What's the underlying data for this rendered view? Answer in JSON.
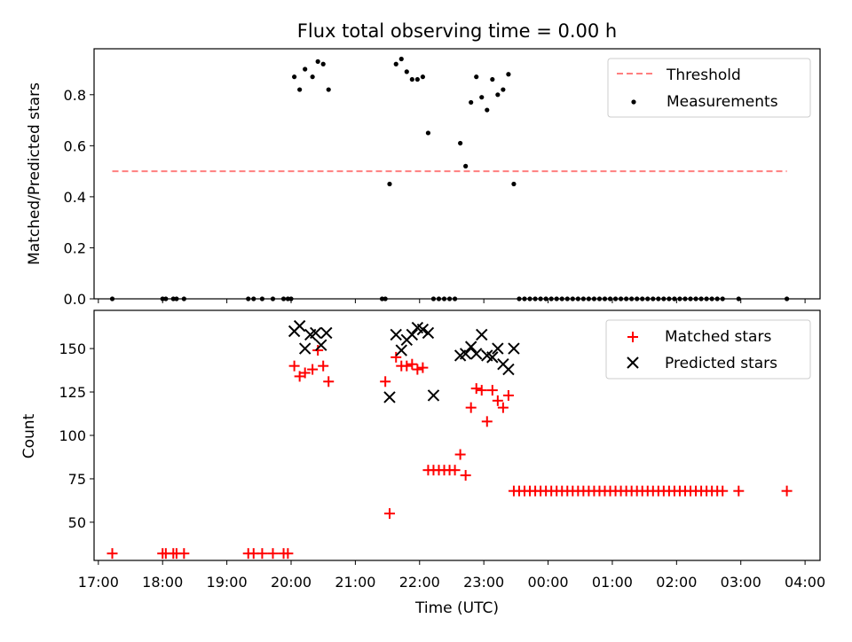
{
  "chart_data": [
    {
      "type": "scatter",
      "title": "Flux total observing time = 0.00 h",
      "ylabel": "Matched/Predicted stars",
      "xlim": [
        "16:56",
        "04:14"
      ],
      "ylim": [
        0,
        0.98
      ],
      "yticks": [
        "0.0",
        "0.2",
        "0.4",
        "0.6",
        "0.8"
      ],
      "legend_position": "top-right",
      "threshold": {
        "name": "Threshold",
        "value": 0.5,
        "x_start": "17:13",
        "x_end": "03:43",
        "color": "#ff7f7f"
      },
      "series": [
        {
          "name": "Measurements",
          "color": "#000000",
          "points": [
            [
              "17:13",
              0
            ],
            [
              "18:00",
              0
            ],
            [
              "18:03",
              0
            ],
            [
              "18:10",
              0
            ],
            [
              "18:13",
              0
            ],
            [
              "18:20",
              0
            ],
            [
              "19:20",
              0
            ],
            [
              "19:25",
              0
            ],
            [
              "19:33",
              0
            ],
            [
              "19:43",
              0
            ],
            [
              "19:53",
              0
            ],
            [
              "19:57",
              0
            ],
            [
              "20:00",
              0
            ],
            [
              "20:03",
              0.87
            ],
            [
              "20:08",
              0.82
            ],
            [
              "20:13",
              0.9
            ],
            [
              "20:20",
              0.87
            ],
            [
              "20:25",
              0.93
            ],
            [
              "20:30",
              0.92
            ],
            [
              "20:35",
              0.82
            ],
            [
              "21:25",
              0
            ],
            [
              "21:28",
              0
            ],
            [
              "21:32",
              0.45
            ],
            [
              "21:38",
              0.92
            ],
            [
              "21:43",
              0.94
            ],
            [
              "21:48",
              0.89
            ],
            [
              "21:53",
              0.86
            ],
            [
              "21:58",
              0.86
            ],
            [
              "22:03",
              0.87
            ],
            [
              "22:08",
              0.65
            ],
            [
              "22:13",
              0
            ],
            [
              "22:18",
              0
            ],
            [
              "22:23",
              0
            ],
            [
              "22:28",
              0
            ],
            [
              "22:33",
              0
            ],
            [
              "22:38",
              0.61
            ],
            [
              "22:43",
              0.52
            ],
            [
              "22:48",
              0.77
            ],
            [
              "22:53",
              0.87
            ],
            [
              "22:58",
              0.79
            ],
            [
              "23:03",
              0.74
            ],
            [
              "23:08",
              0.86
            ],
            [
              "23:13",
              0.8
            ],
            [
              "23:18",
              0.82
            ],
            [
              "23:23",
              0.88
            ],
            [
              "23:28",
              0.45
            ],
            [
              "23:33",
              0
            ],
            [
              "23:38",
              0
            ],
            [
              "23:43",
              0
            ],
            [
              "23:48",
              0
            ],
            [
              "23:53",
              0
            ],
            [
              "23:58",
              0
            ],
            [
              "00:03",
              0
            ],
            [
              "00:08",
              0
            ],
            [
              "00:13",
              0
            ],
            [
              "00:18",
              0
            ],
            [
              "00:23",
              0
            ],
            [
              "00:28",
              0
            ],
            [
              "00:33",
              0
            ],
            [
              "00:38",
              0
            ],
            [
              "00:43",
              0
            ],
            [
              "00:48",
              0
            ],
            [
              "00:53",
              0
            ],
            [
              "00:58",
              0
            ],
            [
              "01:03",
              0
            ],
            [
              "01:08",
              0
            ],
            [
              "01:13",
              0
            ],
            [
              "01:18",
              0
            ],
            [
              "01:23",
              0
            ],
            [
              "01:28",
              0
            ],
            [
              "01:33",
              0
            ],
            [
              "01:38",
              0
            ],
            [
              "01:43",
              0
            ],
            [
              "01:48",
              0
            ],
            [
              "01:53",
              0
            ],
            [
              "01:58",
              0
            ],
            [
              "02:03",
              0
            ],
            [
              "02:08",
              0
            ],
            [
              "02:13",
              0
            ],
            [
              "02:18",
              0
            ],
            [
              "02:23",
              0
            ],
            [
              "02:28",
              0
            ],
            [
              "02:33",
              0
            ],
            [
              "02:38",
              0
            ],
            [
              "02:43",
              0
            ],
            [
              "02:58",
              0
            ],
            [
              "03:43",
              0
            ]
          ]
        }
      ]
    },
    {
      "type": "scatter",
      "xlabel": "Time (UTC)",
      "ylabel": "Count",
      "xlim": [
        "16:56",
        "04:14"
      ],
      "ylim": [
        28,
        172
      ],
      "yticks": [
        "50",
        "75",
        "100",
        "125",
        "150"
      ],
      "xticks": [
        "17:00",
        "18:00",
        "19:00",
        "20:00",
        "21:00",
        "22:00",
        "23:00",
        "00:00",
        "01:00",
        "02:00",
        "03:00",
        "04:00"
      ],
      "legend_position": "top-right",
      "series": [
        {
          "name": "Matched stars",
          "marker": "plus",
          "color": "#ff0000",
          "points": [
            [
              "17:13",
              32
            ],
            [
              "18:00",
              32
            ],
            [
              "18:03",
              32
            ],
            [
              "18:10",
              32
            ],
            [
              "18:13",
              32
            ],
            [
              "18:20",
              32
            ],
            [
              "19:20",
              32
            ],
            [
              "19:25",
              32
            ],
            [
              "19:33",
              32
            ],
            [
              "19:43",
              32
            ],
            [
              "19:53",
              32
            ],
            [
              "19:57",
              32
            ],
            [
              "20:03",
              140
            ],
            [
              "20:08",
              134
            ],
            [
              "20:13",
              136
            ],
            [
              "20:20",
              138
            ],
            [
              "20:25",
              149
            ],
            [
              "20:30",
              140
            ],
            [
              "20:35",
              131
            ],
            [
              "21:28",
              131
            ],
            [
              "21:32",
              55
            ],
            [
              "21:38",
              145
            ],
            [
              "21:43",
              140
            ],
            [
              "21:48",
              140
            ],
            [
              "21:53",
              141
            ],
            [
              "21:58",
              138
            ],
            [
              "22:03",
              139
            ],
            [
              "22:08",
              80
            ],
            [
              "22:13",
              80
            ],
            [
              "22:18",
              80
            ],
            [
              "22:23",
              80
            ],
            [
              "22:28",
              80
            ],
            [
              "22:33",
              80
            ],
            [
              "22:38",
              89
            ],
            [
              "22:43",
              77
            ],
            [
              "22:48",
              116
            ],
            [
              "22:53",
              127
            ],
            [
              "22:58",
              126
            ],
            [
              "23:03",
              108
            ],
            [
              "23:08",
              126
            ],
            [
              "23:13",
              120
            ],
            [
              "23:18",
              116
            ],
            [
              "23:23",
              123
            ],
            [
              "23:28",
              68
            ],
            [
              "23:33",
              68
            ],
            [
              "23:38",
              68
            ],
            [
              "23:43",
              68
            ],
            [
              "23:48",
              68
            ],
            [
              "23:53",
              68
            ],
            [
              "23:58",
              68
            ],
            [
              "00:03",
              68
            ],
            [
              "00:08",
              68
            ],
            [
              "00:13",
              68
            ],
            [
              "00:18",
              68
            ],
            [
              "00:23",
              68
            ],
            [
              "00:28",
              68
            ],
            [
              "00:33",
              68
            ],
            [
              "00:38",
              68
            ],
            [
              "00:43",
              68
            ],
            [
              "00:48",
              68
            ],
            [
              "00:53",
              68
            ],
            [
              "00:58",
              68
            ],
            [
              "01:03",
              68
            ],
            [
              "01:08",
              68
            ],
            [
              "01:13",
              68
            ],
            [
              "01:18",
              68
            ],
            [
              "01:23",
              68
            ],
            [
              "01:28",
              68
            ],
            [
              "01:33",
              68
            ],
            [
              "01:38",
              68
            ],
            [
              "01:43",
              68
            ],
            [
              "01:48",
              68
            ],
            [
              "01:53",
              68
            ],
            [
              "01:58",
              68
            ],
            [
              "02:03",
              68
            ],
            [
              "02:08",
              68
            ],
            [
              "02:13",
              68
            ],
            [
              "02:18",
              68
            ],
            [
              "02:23",
              68
            ],
            [
              "02:28",
              68
            ],
            [
              "02:33",
              68
            ],
            [
              "02:38",
              68
            ],
            [
              "02:43",
              68
            ],
            [
              "02:58",
              68
            ],
            [
              "03:43",
              68
            ]
          ]
        },
        {
          "name": "Predicted stars",
          "marker": "x",
          "color": "#000000",
          "points": [
            [
              "20:03",
              160
            ],
            [
              "20:08",
              163
            ],
            [
              "20:13",
              150
            ],
            [
              "20:18",
              158
            ],
            [
              "20:23",
              159
            ],
            [
              "20:28",
              152
            ],
            [
              "20:33",
              159
            ],
            [
              "21:32",
              122
            ],
            [
              "21:38",
              158
            ],
            [
              "21:43",
              149
            ],
            [
              "21:48",
              155
            ],
            [
              "21:53",
              158
            ],
            [
              "21:58",
              162
            ],
            [
              "22:03",
              161
            ],
            [
              "22:08",
              159
            ],
            [
              "22:13",
              123
            ],
            [
              "22:38",
              146
            ],
            [
              "22:43",
              147
            ],
            [
              "22:48",
              151
            ],
            [
              "22:53",
              147
            ],
            [
              "22:58",
              158
            ],
            [
              "23:03",
              146
            ],
            [
              "23:08",
              145
            ],
            [
              "23:13",
              150
            ],
            [
              "23:18",
              141
            ],
            [
              "23:23",
              138
            ],
            [
              "23:28",
              150
            ]
          ]
        }
      ]
    }
  ]
}
